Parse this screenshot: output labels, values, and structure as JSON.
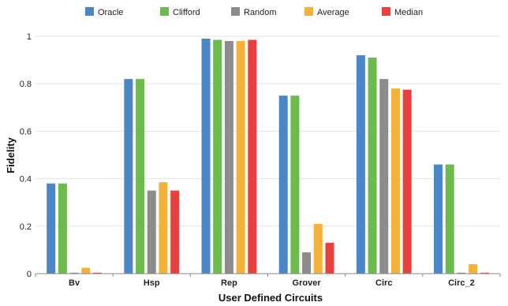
{
  "chart_data": {
    "type": "bar",
    "title": "",
    "xlabel": "User Defined Circuits",
    "ylabel": "Fidelity",
    "ylim": [
      0,
      1
    ],
    "yticks": [
      "0",
      "0.2",
      "0.4",
      "0.6",
      "0.8",
      "1"
    ],
    "grid": true,
    "legend_position": "top-center",
    "categories": [
      "Bv",
      "Hsp",
      "Rep",
      "Grover",
      "Circ",
      "Circ_2"
    ],
    "series": [
      {
        "name": "Oracle",
        "color": "#4a86c8",
        "values": [
          0.38,
          0.82,
          0.99,
          0.75,
          0.92,
          0.46
        ]
      },
      {
        "name": "Clifford",
        "color": "#6dbb4c",
        "values": [
          0.38,
          0.82,
          0.985,
          0.75,
          0.91,
          0.46
        ]
      },
      {
        "name": "Random",
        "color": "#8c8c8c",
        "values": [
          0.004,
          0.35,
          0.98,
          0.09,
          0.82,
          0.004
        ]
      },
      {
        "name": "Average",
        "color": "#f4b23a",
        "values": [
          0.025,
          0.385,
          0.98,
          0.21,
          0.78,
          0.04
        ]
      },
      {
        "name": "Median",
        "color": "#e8403f",
        "values": [
          0.004,
          0.35,
          0.985,
          0.13,
          0.775,
          0.004
        ]
      }
    ]
  }
}
